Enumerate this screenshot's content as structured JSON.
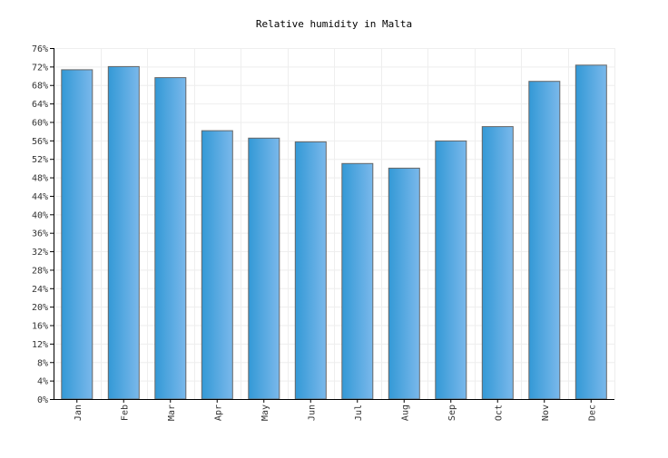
{
  "chart_data": {
    "type": "bar",
    "title": "Relative humidity in Malta",
    "xlabel": "",
    "ylabel": "",
    "categories": [
      "Jan",
      "Feb",
      "Mar",
      "Apr",
      "May",
      "Jun",
      "Jul",
      "Aug",
      "Sep",
      "Oct",
      "Nov",
      "Dec"
    ],
    "values": [
      71.3,
      72.0,
      69.6,
      58.1,
      56.5,
      55.7,
      51.0,
      50.0,
      55.9,
      59.0,
      68.8,
      72.3
    ],
    "ylim": [
      0,
      76
    ],
    "y_ticks": [
      0,
      4,
      8,
      12,
      16,
      20,
      24,
      28,
      32,
      36,
      40,
      44,
      48,
      52,
      56,
      60,
      64,
      68,
      72,
      76
    ],
    "y_tick_suffix": "%",
    "grid": true,
    "colors": {
      "bar_gradient_start": "#3399d6",
      "bar_gradient_end": "#7ab8eb",
      "bar_border": "#666666",
      "grid": "#eeeeee",
      "axis": "#000000"
    }
  }
}
